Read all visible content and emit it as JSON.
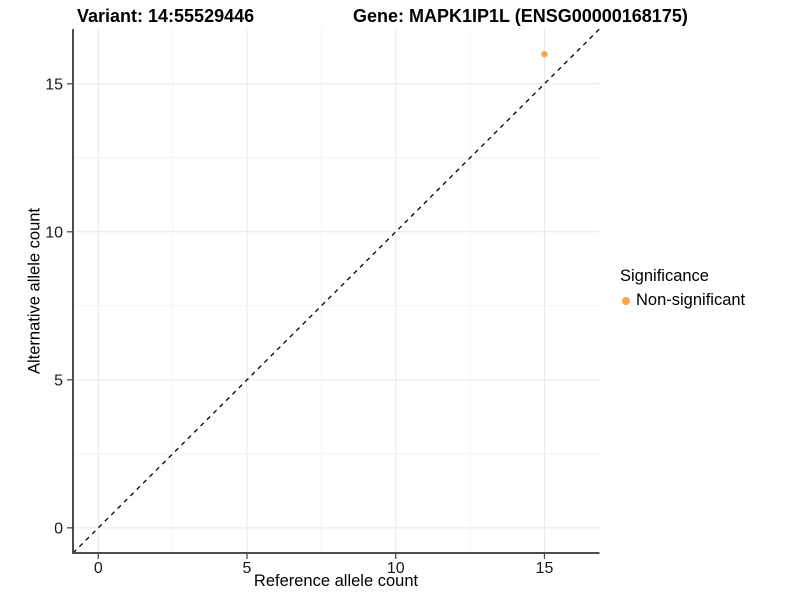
{
  "chart_data": {
    "type": "scatter",
    "titles": {
      "variant": "Variant: 14:55529446",
      "gene": "Gene: MAPK1IP1L (ENSG00000168175)"
    },
    "xlabel": "Reference allele count",
    "ylabel": "Alternative allele count",
    "xlim": [
      -0.85,
      16.85
    ],
    "ylim": [
      -0.85,
      16.85
    ],
    "x_ticks": [
      0,
      5,
      10,
      15
    ],
    "y_ticks": [
      0,
      5,
      10,
      15
    ],
    "x_minor_gridlines": [
      2.5,
      7.5,
      12.5
    ],
    "y_minor_gridlines": [
      2.5,
      7.5,
      12.5
    ],
    "grid": "major+minor",
    "legend": {
      "title": "Significance",
      "position": "right",
      "items": [
        {
          "label": "Non-significant",
          "color": "#F9A44A"
        }
      ]
    },
    "series": [
      {
        "name": "Non-significant",
        "color": "#F9A44A",
        "points": [
          {
            "x": 15,
            "y": 16
          }
        ]
      }
    ],
    "reference_line": {
      "slope": 1,
      "intercept": 0,
      "style": "dashed",
      "color": "#000000"
    }
  },
  "colors": {
    "background": "#ffffff",
    "point": "#F9A44A",
    "axis_line": "#4d4d4d",
    "tick_mark": "#4d4d4d",
    "grid_major": "#e8e8e8",
    "grid_minor": "#f3f3f3",
    "tick_label": "#1a1a1a",
    "text": "#000000"
  }
}
